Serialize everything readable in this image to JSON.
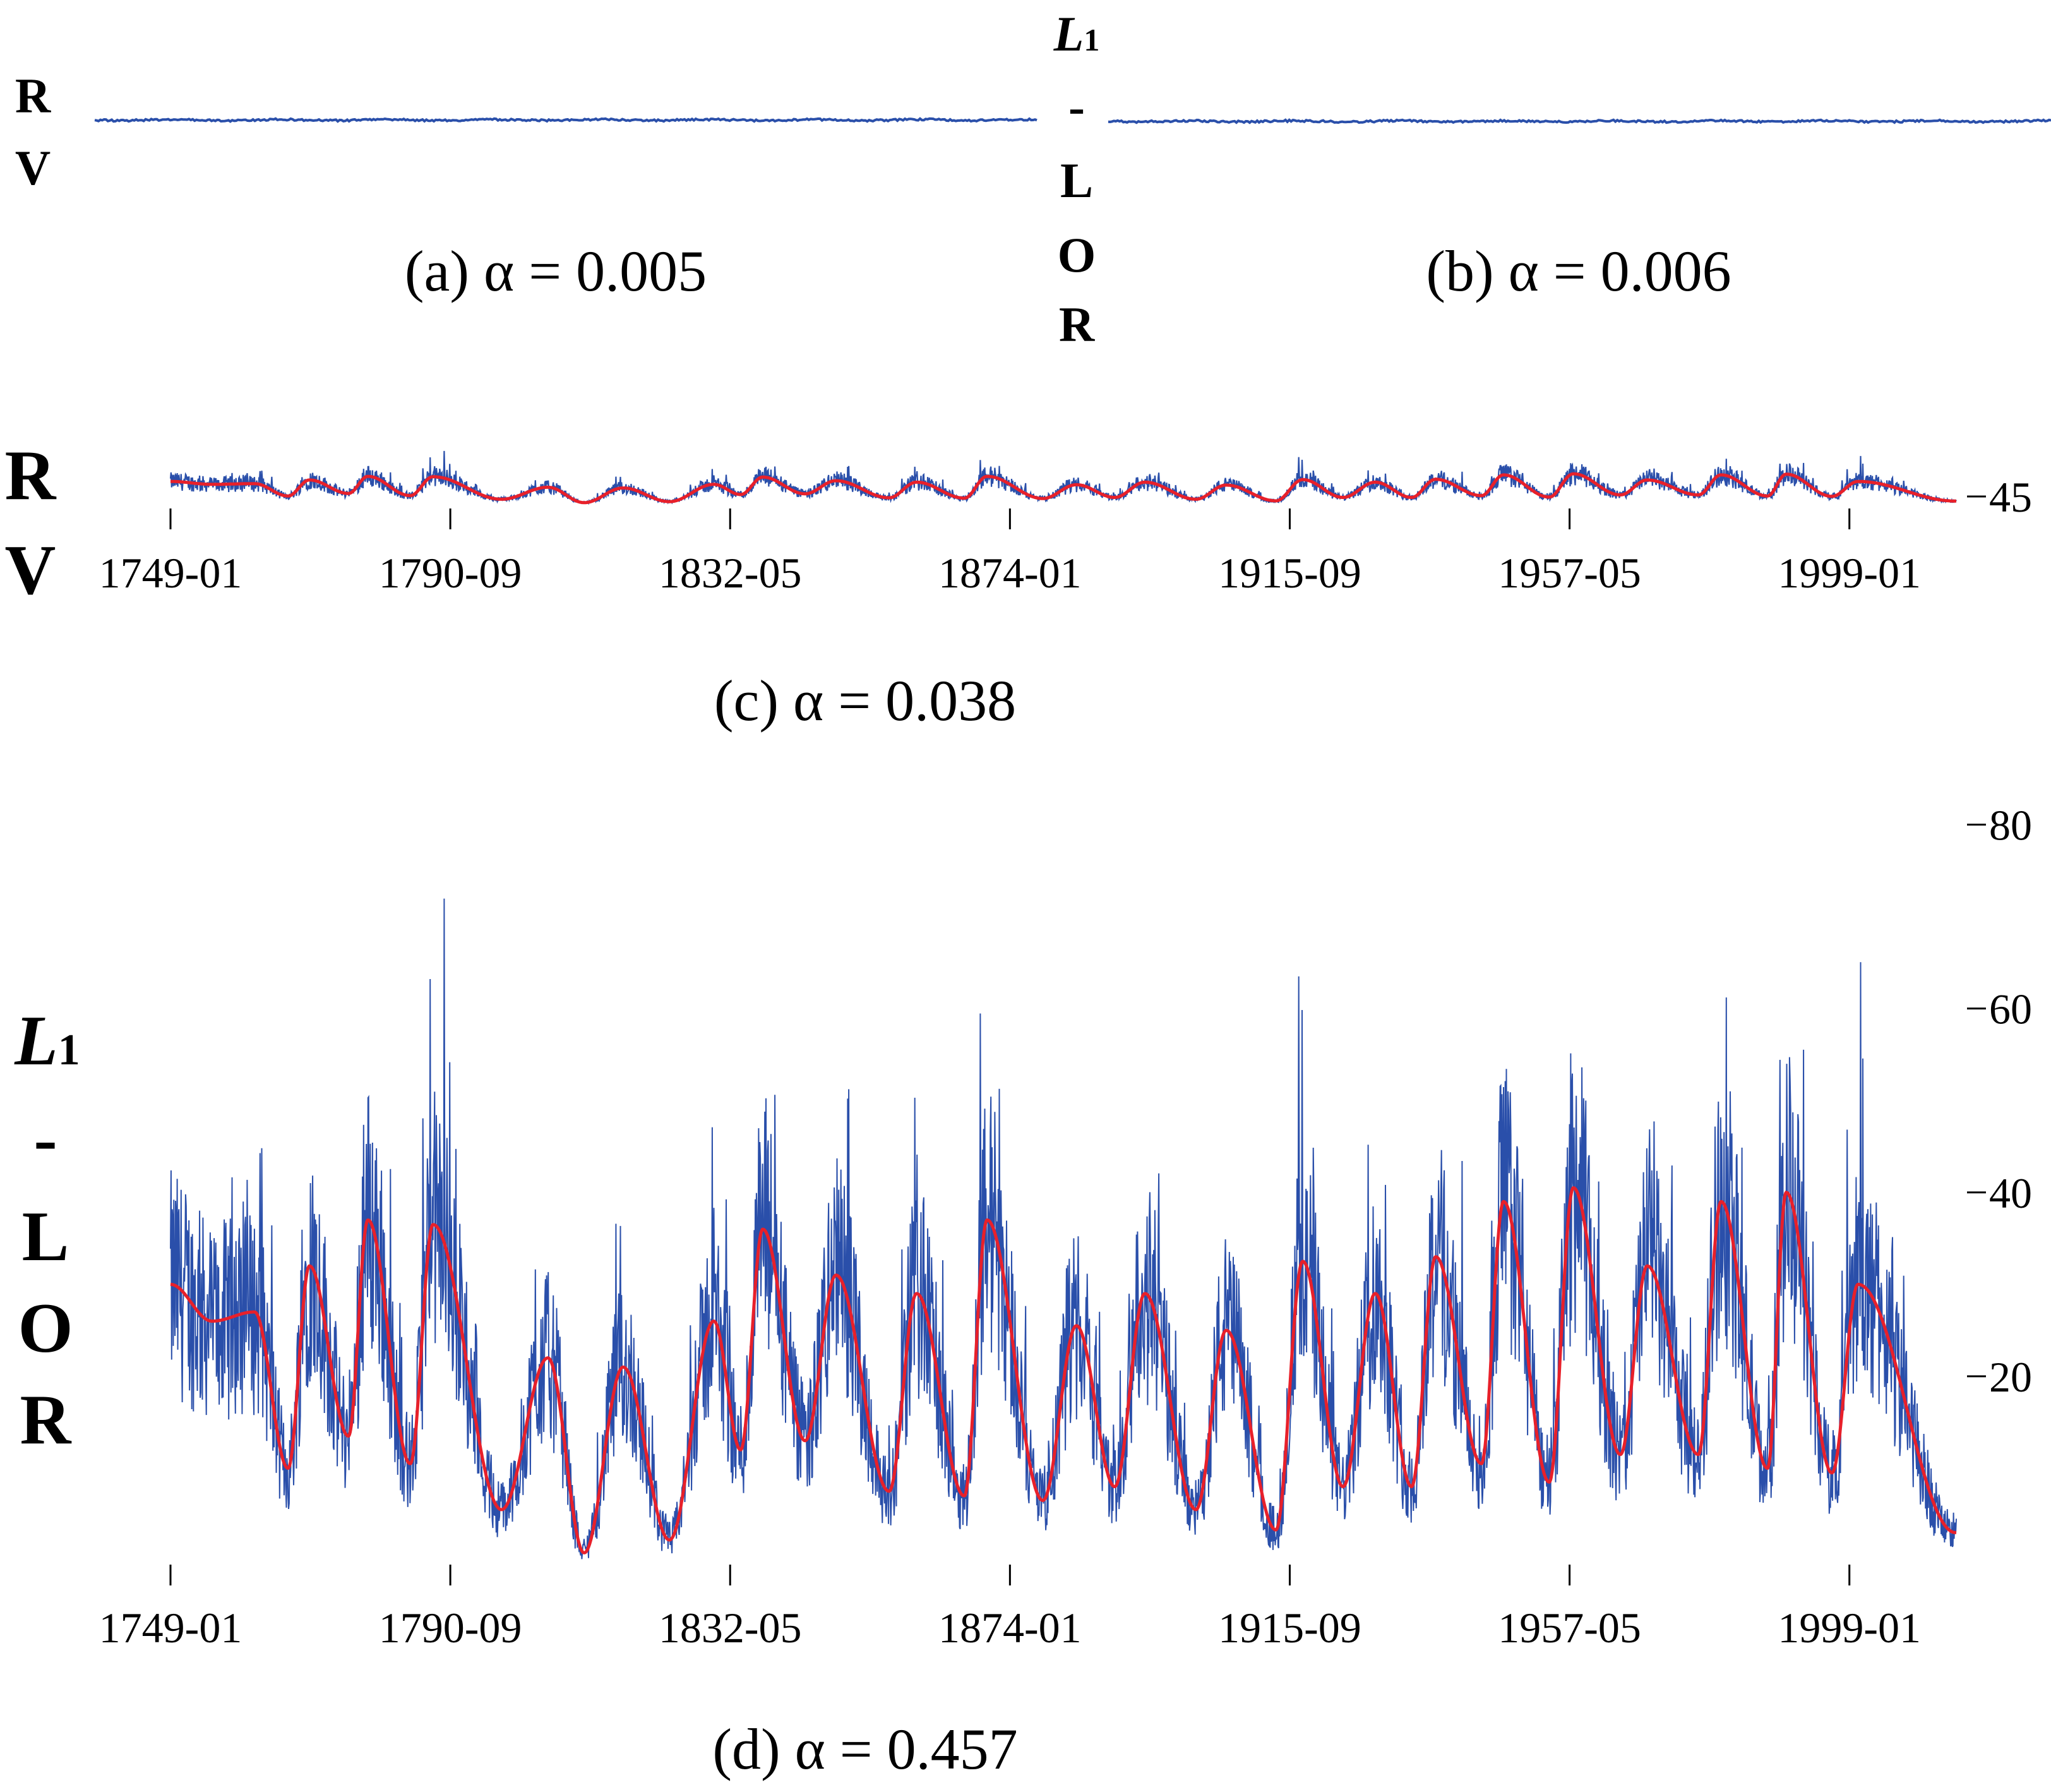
{
  "colors": {
    "raw": "#2a4faa",
    "smooth": "#e8202a",
    "axis": "#000000",
    "background": "#ffffff"
  },
  "labels": {
    "rv": [
      "R",
      "V"
    ],
    "l1lor": {
      "main": "L",
      "sub": "1",
      "rest": [
        "-",
        "L",
        "O",
        "R"
      ]
    }
  },
  "chart_data": [
    {
      "id": "a",
      "type": "line",
      "caption": "(a) α = 0.005",
      "row_label": "RV",
      "axes_visible": false,
      "series": [
        {
          "style": "raw",
          "level": 0.005,
          "variation": "nearly flat"
        }
      ]
    },
    {
      "id": "b",
      "type": "line",
      "caption": "(b) α = 0.006",
      "row_label": "L1-LOR",
      "axes_visible": false,
      "series": [
        {
          "style": "raw",
          "level": 0.006,
          "variation": "nearly flat"
        }
      ]
    },
    {
      "id": "c",
      "type": "line",
      "caption": "(c) α = 0.038",
      "row_label": "RV",
      "x": {
        "start": "1749-01",
        "end": "2014-12",
        "ticks": [
          "1749-01",
          "1790-09",
          "1832-05",
          "1874-01",
          "1915-09",
          "1957-05",
          "1999-01"
        ]
      },
      "y": {
        "ticks": [
          45
        ],
        "ylim": [
          40.5,
          47.5
        ]
      },
      "series": [
        {
          "style": "raw"
        },
        {
          "style": "smooth"
        }
      ]
    },
    {
      "id": "d",
      "type": "line",
      "caption": "(d) α = 0.457",
      "row_label": "L1-LOR",
      "x": {
        "start": "1749-01",
        "end": "2014-12",
        "ticks": [
          "1749-01",
          "1790-09",
          "1832-05",
          "1874-01",
          "1915-09",
          "1957-05",
          "1999-01"
        ]
      },
      "y": {
        "ticks": [
          20,
          40,
          60,
          80
        ],
        "ylim": [
          0,
          90
        ]
      },
      "series": [
        {
          "style": "raw"
        },
        {
          "style": "smooth",
          "cycle_minima": [
            [
              1755.2,
              26
            ],
            [
              1766.5,
              10
            ],
            [
              1775.5,
              13.5
            ],
            [
              1784.7,
              10.5
            ],
            [
              1798.3,
              5.5
            ],
            [
              1810.6,
              0.8
            ],
            [
              1823.3,
              2.2
            ],
            [
              1833.9,
              12
            ],
            [
              1843.5,
              13
            ],
            [
              1856.0,
              7.5
            ],
            [
              1867.2,
              7
            ],
            [
              1878.9,
              6.5
            ],
            [
              1889.6,
              8
            ],
            [
              1901.7,
              5.5
            ],
            [
              1913.6,
              3.3
            ],
            [
              1923.6,
              8
            ],
            [
              1933.8,
              8
            ],
            [
              1944.2,
              10.5
            ],
            [
              1954.3,
              8.5
            ],
            [
              1964.9,
              11.5
            ],
            [
              1976.5,
              11.5
            ],
            [
              1986.8,
              10
            ],
            [
              1996.4,
              9.5
            ],
            [
              2014.8,
              3
            ]
          ],
          "cycle_maxima": [
            [
              1749.0,
              30
            ],
            [
              1761.5,
              27
            ],
            [
              1769.7,
              32
            ],
            [
              1778.4,
              37
            ],
            [
              1788.1,
              36.5
            ],
            [
              1805.2,
              22
            ],
            [
              1816.4,
              21
            ],
            [
              1829.9,
              26
            ],
            [
              1837.2,
              36
            ],
            [
              1848.1,
              31
            ],
            [
              1860.1,
              29
            ],
            [
              1870.6,
              37
            ],
            [
              1883.9,
              25.5
            ],
            [
              1894.1,
              29
            ],
            [
              1906.2,
              25
            ],
            [
              1917.6,
              32.5
            ],
            [
              1928.4,
              29
            ],
            [
              1937.4,
              33
            ],
            [
              1947.5,
              39
            ],
            [
              1957.9,
              40.5
            ],
            [
              1968.9,
              32
            ],
            [
              1979.9,
              39
            ],
            [
              1989.6,
              40
            ],
            [
              2000.3,
              30
            ]
          ]
        }
      ]
    }
  ]
}
